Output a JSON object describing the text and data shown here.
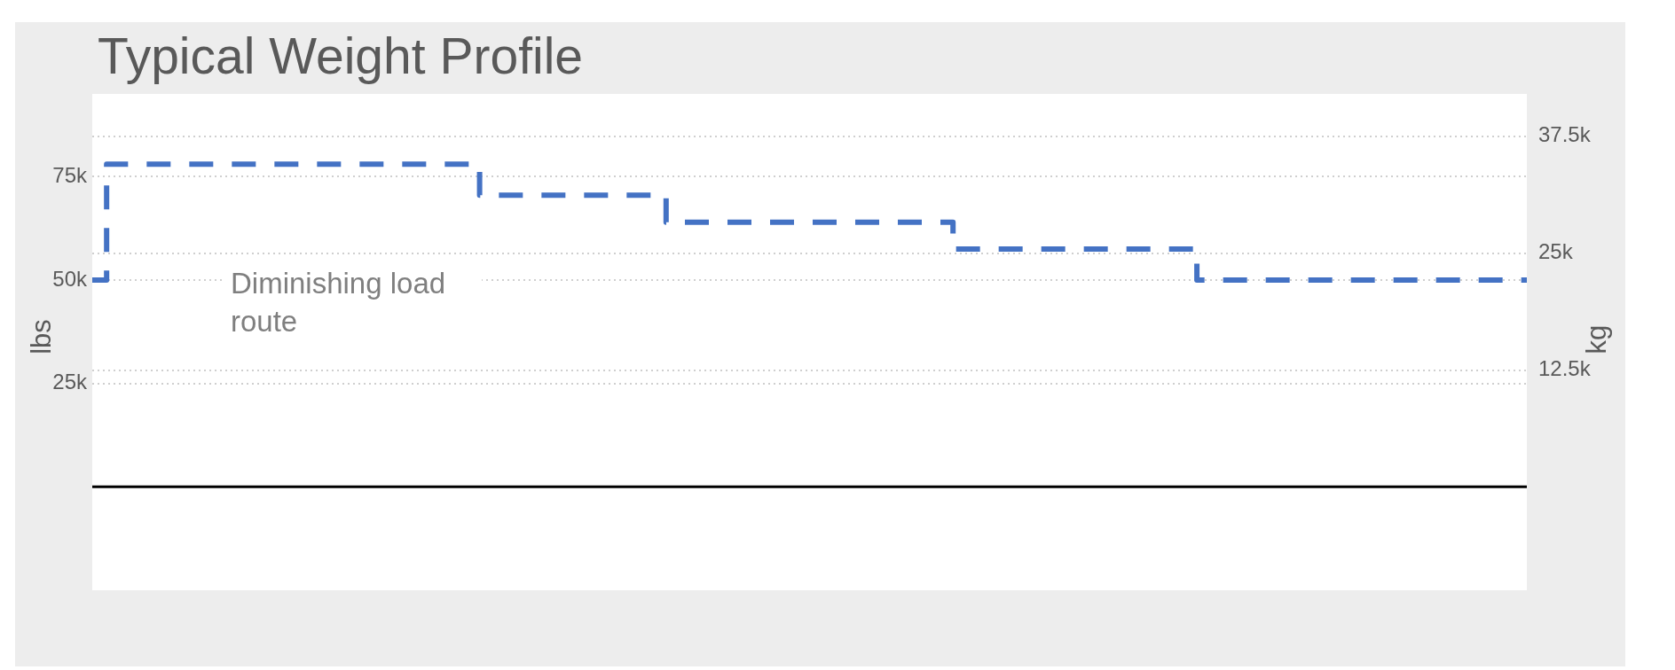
{
  "chart_data": {
    "type": "step",
    "title": "Typical Weight Profile",
    "ylabel": "lbs",
    "y2label": "kg",
    "categories": [
      null,
      null,
      null,
      null,
      null,
      null,
      null,
      null,
      null,
      null,
      null,
      null,
      null,
      null,
      null,
      null,
      null,
      null,
      null,
      null,
      null,
      null,
      null,
      null,
      null,
      null,
      null,
      null,
      null,
      null,
      null,
      null,
      null,
      null,
      null,
      null,
      null,
      null,
      null,
      null,
      null,
      null,
      null,
      null,
      null,
      null,
      null,
      null,
      null,
      null,
      null,
      null,
      null,
      null,
      null,
      null,
      null,
      null,
      null,
      null,
      null,
      null,
      null,
      null,
      null,
      null,
      null,
      null,
      null,
      null,
      null,
      null,
      null,
      null,
      null,
      null,
      null,
      null,
      null,
      null,
      null,
      null,
      null,
      null,
      null,
      null,
      null,
      null,
      null,
      null,
      null,
      null,
      null,
      null,
      null,
      null,
      null,
      null,
      null,
      null,
      null
    ],
    "series": [
      {
        "color": "#4472c4",
        "values": [
          50000,
          78000,
          78000,
          78000,
          78000,
          78000,
          78000,
          78000,
          78000,
          78000,
          78000,
          78000,
          78000,
          78000,
          78000,
          78000,
          78000,
          78000,
          78000,
          78000,
          78000,
          78000,
          78000,
          78000,
          78000,
          78000,
          78000,
          70500,
          70500,
          70500,
          70500,
          70500,
          70500,
          70500,
          70500,
          70500,
          70500,
          70500,
          70500,
          70500,
          64000,
          64000,
          64000,
          64000,
          64000,
          64000,
          64000,
          64000,
          64000,
          64000,
          64000,
          64000,
          64000,
          64000,
          64000,
          64000,
          64000,
          64000,
          64000,
          64000,
          57500,
          57500,
          57500,
          57500,
          57500,
          57500,
          57500,
          57500,
          57500,
          57500,
          57500,
          57500,
          57500,
          57500,
          57500,
          57500,
          57500,
          50000,
          50000,
          50000,
          50000,
          50000,
          50000,
          50000,
          50000,
          50000,
          50000,
          50000,
          50000,
          50000,
          50000,
          50000,
          50000,
          50000,
          50000,
          50000,
          50000,
          50000,
          50000,
          50000,
          50000
        ]
      }
    ],
    "ylim": [
      -25000,
      95000
    ],
    "yticks": [
      {
        "value": 25000,
        "label": "25k"
      },
      {
        "value": 50000,
        "label": "50k"
      },
      {
        "value": 75000,
        "label": "75k"
      }
    ],
    "y2lim": [
      -11000,
      42000
    ],
    "y2ticks": [
      {
        "value": 12500,
        "label": "12.5k"
      },
      {
        "value": 25000,
        "label": "25k"
      },
      {
        "value": 37500,
        "label": "37.5k"
      }
    ],
    "ref_lines": [
      {
        "axis": "y",
        "value": 0,
        "color": "#000000"
      }
    ],
    "annotations": [
      "Diminishing load route"
    ],
    "grid": "y",
    "tick_labels": "y",
    "line_style": "dashed"
  }
}
